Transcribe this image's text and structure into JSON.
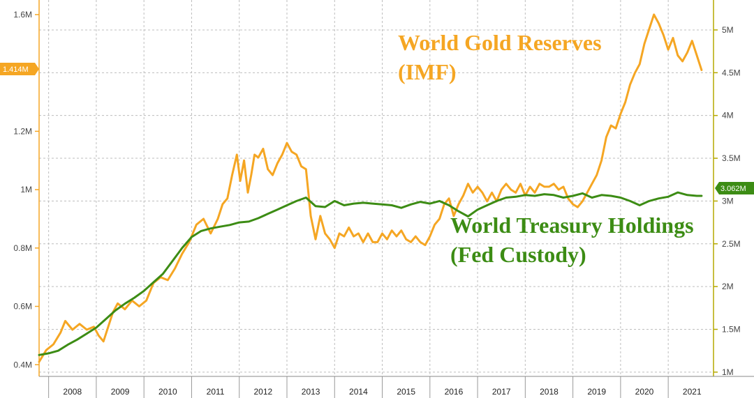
{
  "chart_data": {
    "type": "line",
    "x_range": [
      2007.3,
      2021.45
    ],
    "left_axis": {
      "ticks": [
        {
          "value": 0.4,
          "label": "0.4M"
        },
        {
          "value": 0.6,
          "label": "0.6M"
        },
        {
          "value": 0.8,
          "label": "0.8M"
        },
        {
          "value": 1.0,
          "label": "1M"
        },
        {
          "value": 1.2,
          "label": "1.2M"
        },
        {
          "value": 1.6,
          "label": "1.6M"
        }
      ],
      "range": [
        0.36,
        1.65
      ]
    },
    "right_axis": {
      "ticks": [
        {
          "value": 1.0,
          "label": "1M"
        },
        {
          "value": 1.5,
          "label": "1.5M"
        },
        {
          "value": 2.0,
          "label": "2M"
        },
        {
          "value": 2.5,
          "label": "2.5M"
        },
        {
          "value": 3.0,
          "label": "3M"
        },
        {
          "value": 3.5,
          "label": "3.5M"
        },
        {
          "value": 4.0,
          "label": "4M"
        },
        {
          "value": 4.5,
          "label": "4.5M"
        },
        {
          "value": 5.0,
          "label": "5M"
        }
      ],
      "range": [
        0.95,
        5.35
      ]
    },
    "x_ticks": [
      "2008",
      "2009",
      "2010",
      "2011",
      "2012",
      "2013",
      "2014",
      "2015",
      "2016",
      "2017",
      "2018",
      "2019",
      "2020",
      "2021"
    ],
    "grid": true,
    "series": [
      {
        "name": "World Gold Reserves (IMF)",
        "axis": "left",
        "color": "#f5a623",
        "x": [
          2007.3,
          2007.45,
          2007.6,
          2007.75,
          2007.85,
          2008.0,
          2008.15,
          2008.3,
          2008.45,
          2008.55,
          2008.65,
          2008.75,
          2008.85,
          2008.95,
          2009.1,
          2009.25,
          2009.4,
          2009.55,
          2009.7,
          2009.85,
          2010.0,
          2010.15,
          2010.3,
          2010.45,
          2010.6,
          2010.75,
          2010.9,
          2011.05,
          2011.15,
          2011.25,
          2011.35,
          2011.45,
          2011.52,
          2011.6,
          2011.68,
          2011.75,
          2011.82,
          2011.9,
          2012.0,
          2012.1,
          2012.2,
          2012.3,
          2012.4,
          2012.5,
          2012.6,
          2012.7,
          2012.8,
          2012.9,
          2013.0,
          2013.1,
          2013.2,
          2013.3,
          2013.4,
          2013.5,
          2013.6,
          2013.7,
          2013.8,
          2013.9,
          2014.0,
          2014.1,
          2014.2,
          2014.3,
          2014.4,
          2014.5,
          2014.6,
          2014.7,
          2014.8,
          2014.9,
          2015.0,
          2015.1,
          2015.2,
          2015.3,
          2015.4,
          2015.5,
          2015.6,
          2015.7,
          2015.8,
          2015.9,
          2016.0,
          2016.1,
          2016.2,
          2016.3,
          2016.4,
          2016.5,
          2016.6,
          2016.7,
          2016.8,
          2016.9,
          2017.0,
          2017.1,
          2017.2,
          2017.3,
          2017.4,
          2017.5,
          2017.6,
          2017.7,
          2017.8,
          2017.9,
          2018.0,
          2018.1,
          2018.2,
          2018.3,
          2018.4,
          2018.5,
          2018.6,
          2018.7,
          2018.8,
          2018.9,
          2019.0,
          2019.1,
          2019.2,
          2019.3,
          2019.4,
          2019.5,
          2019.6,
          2019.7,
          2019.8,
          2019.9,
          2020.0,
          2020.1,
          2020.2,
          2020.3,
          2020.4,
          2020.5,
          2020.6,
          2020.7,
          2020.8,
          2020.9,
          2021.0,
          2021.1,
          2021.2
        ],
        "values": [
          0.41,
          0.45,
          0.47,
          0.51,
          0.55,
          0.52,
          0.54,
          0.52,
          0.53,
          0.5,
          0.48,
          0.53,
          0.58,
          0.61,
          0.59,
          0.62,
          0.6,
          0.62,
          0.68,
          0.7,
          0.69,
          0.73,
          0.78,
          0.82,
          0.88,
          0.9,
          0.85,
          0.9,
          0.95,
          0.97,
          1.05,
          1.12,
          1.03,
          1.1,
          0.99,
          1.05,
          1.12,
          1.11,
          1.14,
          1.07,
          1.05,
          1.09,
          1.12,
          1.16,
          1.13,
          1.12,
          1.08,
          1.07,
          0.91,
          0.83,
          0.91,
          0.85,
          0.83,
          0.8,
          0.85,
          0.84,
          0.87,
          0.84,
          0.85,
          0.82,
          0.85,
          0.82,
          0.82,
          0.85,
          0.83,
          0.86,
          0.84,
          0.86,
          0.83,
          0.82,
          0.84,
          0.82,
          0.81,
          0.84,
          0.88,
          0.9,
          0.95,
          0.97,
          0.91,
          0.95,
          0.98,
          1.02,
          0.99,
          1.01,
          0.99,
          0.96,
          0.99,
          0.96,
          1.0,
          1.02,
          1.0,
          0.99,
          1.02,
          0.98,
          1.01,
          0.99,
          1.02,
          1.01,
          1.01,
          1.02,
          1.0,
          1.01,
          0.97,
          0.95,
          0.94,
          0.96,
          0.99,
          1.02,
          1.05,
          1.1,
          1.18,
          1.22,
          1.21,
          1.26,
          1.3,
          1.36,
          1.4,
          1.43,
          1.5,
          1.55,
          1.6,
          1.57,
          1.53,
          1.48,
          1.52,
          1.46,
          1.44,
          1.47,
          1.51,
          1.46,
          1.41
        ]
      },
      {
        "name": "World Treasury Holdings (Fed Custody)",
        "axis": "right",
        "color": "#3c8c14",
        "x": [
          2007.3,
          2007.5,
          2007.7,
          2007.9,
          2008.1,
          2008.3,
          2008.5,
          2008.7,
          2008.9,
          2009.1,
          2009.3,
          2009.5,
          2009.7,
          2009.9,
          2010.1,
          2010.3,
          2010.5,
          2010.7,
          2010.9,
          2011.1,
          2011.3,
          2011.5,
          2011.7,
          2011.9,
          2012.1,
          2012.3,
          2012.5,
          2012.7,
          2012.9,
          2013.1,
          2013.3,
          2013.5,
          2013.7,
          2013.9,
          2014.1,
          2014.3,
          2014.5,
          2014.7,
          2014.9,
          2015.1,
          2015.3,
          2015.5,
          2015.7,
          2015.9,
          2016.1,
          2016.3,
          2016.5,
          2016.7,
          2016.9,
          2017.1,
          2017.3,
          2017.5,
          2017.7,
          2017.9,
          2018.1,
          2018.3,
          2018.5,
          2018.7,
          2018.9,
          2019.1,
          2019.3,
          2019.5,
          2019.7,
          2019.9,
          2020.1,
          2020.3,
          2020.5,
          2020.7,
          2020.9,
          2021.1,
          2021.2
        ],
        "values": [
          1.2,
          1.22,
          1.25,
          1.32,
          1.38,
          1.45,
          1.52,
          1.62,
          1.72,
          1.8,
          1.87,
          1.95,
          2.05,
          2.15,
          2.3,
          2.45,
          2.58,
          2.65,
          2.68,
          2.7,
          2.72,
          2.75,
          2.76,
          2.8,
          2.85,
          2.9,
          2.95,
          3.0,
          3.04,
          2.94,
          2.93,
          3.0,
          2.95,
          2.97,
          2.98,
          2.97,
          2.96,
          2.95,
          2.92,
          2.96,
          2.99,
          2.97,
          3.0,
          2.95,
          2.88,
          2.82,
          2.9,
          2.95,
          3.0,
          3.04,
          3.05,
          3.07,
          3.06,
          3.08,
          3.07,
          3.04,
          3.06,
          3.09,
          3.04,
          3.07,
          3.06,
          3.04,
          3.0,
          2.95,
          3.0,
          3.03,
          3.05,
          3.1,
          3.07,
          3.06,
          3.06
        ]
      }
    ],
    "annotations": {
      "gold_label_line1": "World Gold Reserves",
      "gold_label_line2": "(IMF)",
      "treasury_label_line1": "World Treasury Holdings",
      "treasury_label_line2": "(Fed Custody)",
      "gold_last_value": "1.414M",
      "treasury_last_value": "3.062M"
    }
  }
}
